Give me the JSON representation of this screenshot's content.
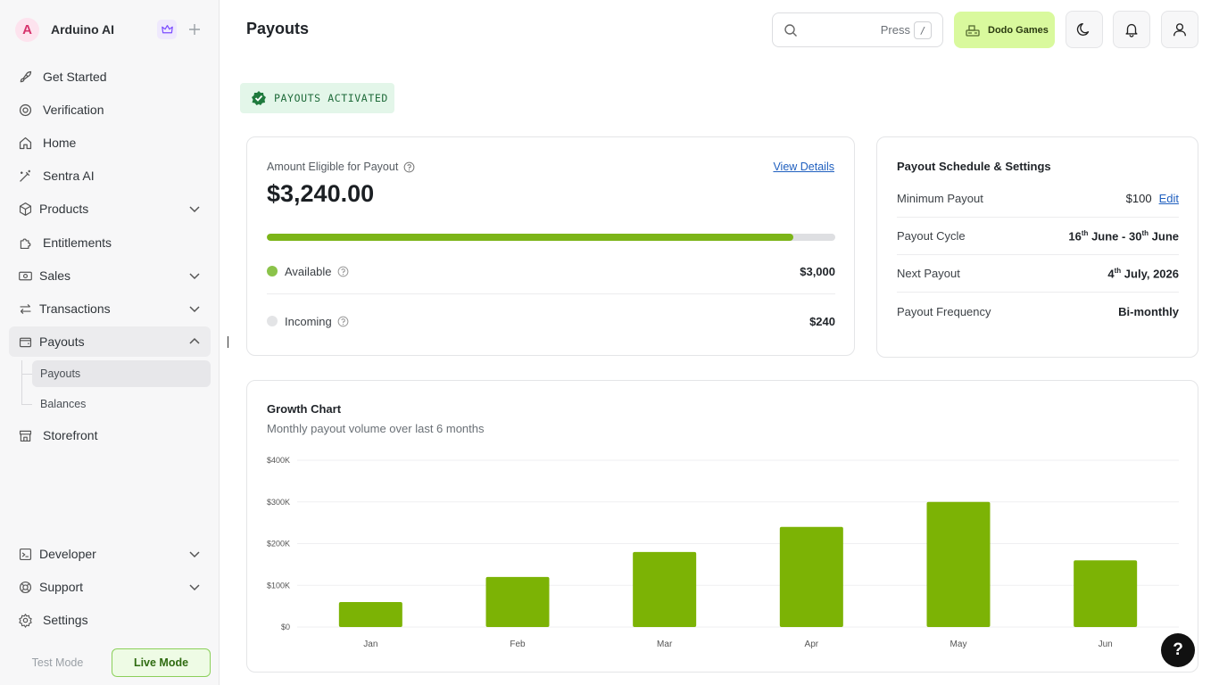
{
  "app": {
    "org_name": "Arduino AI",
    "avatar_letter": "A"
  },
  "sidebar": {
    "items": [
      {
        "label": "Get Started"
      },
      {
        "label": "Verification"
      },
      {
        "label": "Home"
      },
      {
        "label": "Sentra AI"
      },
      {
        "label": "Products"
      },
      {
        "label": "Entitlements"
      },
      {
        "label": "Sales"
      },
      {
        "label": "Transactions"
      },
      {
        "label": "Payouts"
      },
      {
        "label": "Storefront"
      },
      {
        "label": "Developer"
      },
      {
        "label": "Support"
      },
      {
        "label": "Settings"
      }
    ],
    "sub_items": [
      {
        "label": "Payouts"
      },
      {
        "label": "Balances"
      }
    ],
    "mode": {
      "test_label": "Test Mode",
      "live_label": "Live Mode"
    }
  },
  "header": {
    "title": "Payouts",
    "search": {
      "press_label": "Press",
      "shortcut": "/"
    },
    "org_button_label": "Dodo Games"
  },
  "status": {
    "label": "PAYOUTS ACTIVATED"
  },
  "amount_card": {
    "label": "Amount Eligible for Payout",
    "view_details_label": "View Details",
    "amount": "$3,240.00",
    "progress_fraction": 0.9259,
    "rows": [
      {
        "label": "Available",
        "value": "$3,000",
        "color": "#8bc34a"
      },
      {
        "label": "Incoming",
        "value": "$240",
        "color": "#e3e4e6"
      }
    ]
  },
  "schedule": {
    "title": "Payout Schedule & Settings",
    "min_label": "Minimum Payout",
    "min_value": "$100",
    "edit_label": "Edit",
    "cycle_label": "Payout Cycle",
    "cycle_start_day": "16",
    "cycle_start_suffix": "th",
    "cycle_start_month": "June",
    "cycle_sep": "-",
    "cycle_end_day": "30",
    "cycle_end_suffix": "th",
    "cycle_end_month": "June",
    "next_label": "Next Payout",
    "next_day": "4",
    "next_suffix": "th",
    "next_rest": "July, 2026",
    "freq_label": "Payout Frequency",
    "freq_value": "Bi-monthly"
  },
  "growth": {
    "title": "Growth Chart",
    "subtitle": "Monthly payout volume over last 6 months"
  },
  "chart_data": {
    "type": "bar",
    "categories": [
      "Jan",
      "Feb",
      "Mar",
      "Apr",
      "May",
      "Jun"
    ],
    "values": [
      60000,
      120000,
      180000,
      240000,
      300000,
      160000
    ],
    "yticks": [
      "$0",
      "$100K",
      "$200K",
      "$300K",
      "$400K"
    ],
    "ylim": [
      0,
      400000
    ],
    "grid": true,
    "bar_color": "#7cb305"
  },
  "colors": {
    "accent": "#7cb518",
    "org_button": "#d9f99d",
    "status_bg": "#e3f6e9",
    "link": "#1f5fbf"
  },
  "help_label": "?"
}
